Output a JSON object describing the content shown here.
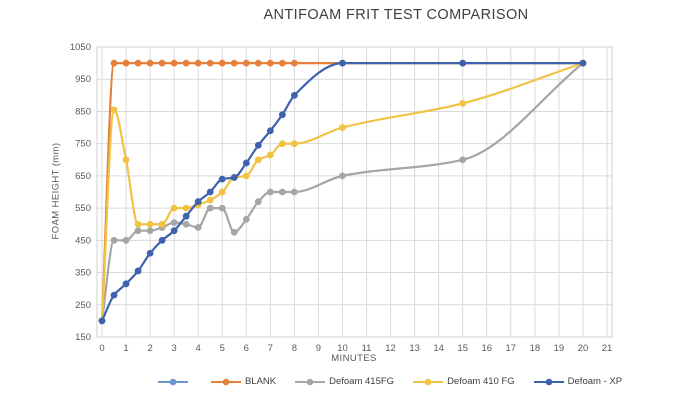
{
  "chart_data": {
    "type": "line",
    "title": "ANTIFOAM FRIT TEST COMPARISON",
    "xlabel": "MINUTES",
    "ylabel": "FOAM HEIGHT (mm)",
    "xlim": [
      0,
      21
    ],
    "ylim": [
      150,
      1050
    ],
    "xticks": [
      0,
      1,
      2,
      3,
      4,
      5,
      6,
      7,
      8,
      9,
      10,
      11,
      12,
      13,
      14,
      15,
      16,
      17,
      18,
      19,
      20,
      21
    ],
    "yticks": [
      150,
      250,
      350,
      450,
      550,
      650,
      750,
      850,
      950,
      1050
    ],
    "grid": true,
    "legend_position": "bottom",
    "axis_colors": {
      "grid": "#D9D9D9",
      "border": "#D2D2D2",
      "tick_text": "#595959",
      "title_text": "#3f3f3f"
    },
    "series": [
      {
        "name": "",
        "color": "#6D96D1",
        "points": []
      },
      {
        "name": "BLANK",
        "color": "#E5803A",
        "points": [
          [
            0,
            200
          ],
          [
            0.5,
            1000
          ],
          [
            1,
            1000
          ],
          [
            1.5,
            1000
          ],
          [
            2,
            1000
          ],
          [
            2.5,
            1000
          ],
          [
            3,
            1000
          ],
          [
            3.5,
            1000
          ],
          [
            4,
            1000
          ],
          [
            4.5,
            1000
          ],
          [
            5,
            1000
          ],
          [
            5.5,
            1000
          ],
          [
            6,
            1000
          ],
          [
            6.5,
            1000
          ],
          [
            7,
            1000
          ],
          [
            7.5,
            1000
          ],
          [
            8,
            1000
          ],
          [
            10,
            1000
          ],
          [
            15,
            1000
          ],
          [
            20,
            1000
          ]
        ]
      },
      {
        "name": "Defoam 415FG",
        "color": "#A6A6A6",
        "points": [
          [
            0,
            200
          ],
          [
            0.5,
            450
          ],
          [
            1,
            450
          ],
          [
            1.5,
            480
          ],
          [
            2,
            480
          ],
          [
            2.5,
            490
          ],
          [
            3,
            505
          ],
          [
            3.5,
            500
          ],
          [
            4,
            490
          ],
          [
            4.5,
            550
          ],
          [
            5,
            550
          ],
          [
            5.5,
            475
          ],
          [
            6,
            515
          ],
          [
            6.5,
            570
          ],
          [
            7,
            600
          ],
          [
            7.5,
            600
          ],
          [
            8,
            600
          ],
          [
            10,
            650
          ],
          [
            15,
            700
          ],
          [
            20,
            1000
          ]
        ]
      },
      {
        "name": "Defoam 410 FG",
        "color": "#F1C344",
        "points": [
          [
            0,
            200
          ],
          [
            0.5,
            855
          ],
          [
            1,
            700
          ],
          [
            1.5,
            500
          ],
          [
            2,
            500
          ],
          [
            2.5,
            500
          ],
          [
            3,
            550
          ],
          [
            3.5,
            550
          ],
          [
            4,
            560
          ],
          [
            4.5,
            575
          ],
          [
            5,
            600
          ],
          [
            5.5,
            645
          ],
          [
            6,
            650
          ],
          [
            6.5,
            700
          ],
          [
            7,
            715
          ],
          [
            7.5,
            750
          ],
          [
            8,
            750
          ],
          [
            10,
            800
          ],
          [
            15,
            875
          ],
          [
            20,
            1000
          ]
        ]
      },
      {
        "name": "Defoam - XP",
        "color": "#3E62AE",
        "points": [
          [
            0,
            200
          ],
          [
            0.5,
            280
          ],
          [
            1,
            315
          ],
          [
            1.5,
            355
          ],
          [
            2,
            410
          ],
          [
            2.5,
            450
          ],
          [
            3,
            480
          ],
          [
            3.5,
            525
          ],
          [
            4,
            570
          ],
          [
            4.5,
            600
          ],
          [
            5,
            640
          ],
          [
            5.5,
            645
          ],
          [
            6,
            690
          ],
          [
            6.5,
            745
          ],
          [
            7,
            790
          ],
          [
            7.5,
            840
          ],
          [
            8,
            900
          ],
          [
            10,
            1000
          ],
          [
            15,
            1000
          ],
          [
            20,
            1000
          ]
        ]
      }
    ]
  }
}
